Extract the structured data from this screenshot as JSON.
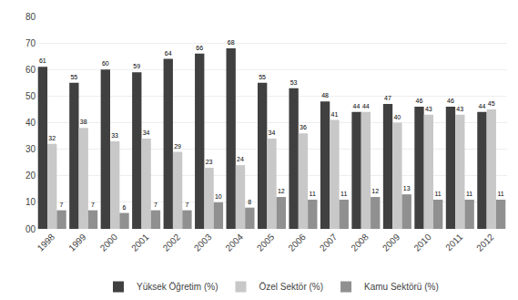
{
  "chart_data": {
    "type": "bar",
    "categories": [
      "1998",
      "1999",
      "2000",
      "2001",
      "2002",
      "2003",
      "2004",
      "2005",
      "2006",
      "2007",
      "2008",
      "2009",
      "2010",
      "2011",
      "2012"
    ],
    "series": [
      {
        "name": "Yüksek Öğretim (%)",
        "color": "#404040",
        "values": [
          61,
          55,
          60,
          59,
          64,
          66,
          68,
          55,
          53,
          48,
          44,
          47,
          46,
          46,
          44
        ]
      },
      {
        "name": "Özel Sektör (%)",
        "color": "#c8c8c8",
        "values": [
          32,
          38,
          33,
          34,
          29,
          23,
          24,
          34,
          36,
          41,
          44,
          40,
          43,
          43,
          45
        ]
      },
      {
        "name": "Kamu Sektörü (%)",
        "color": "#909090",
        "values": [
          7,
          7,
          6,
          7,
          7,
          10,
          8,
          12,
          11,
          11,
          12,
          13,
          11,
          11,
          11
        ]
      }
    ],
    "ylim": [
      0,
      80
    ],
    "yticks": [
      {
        "value": 0,
        "label": "00"
      },
      10,
      20,
      30,
      40,
      50,
      60,
      70,
      80
    ],
    "grid": true,
    "legend": "bottom",
    "data_labels": true
  }
}
